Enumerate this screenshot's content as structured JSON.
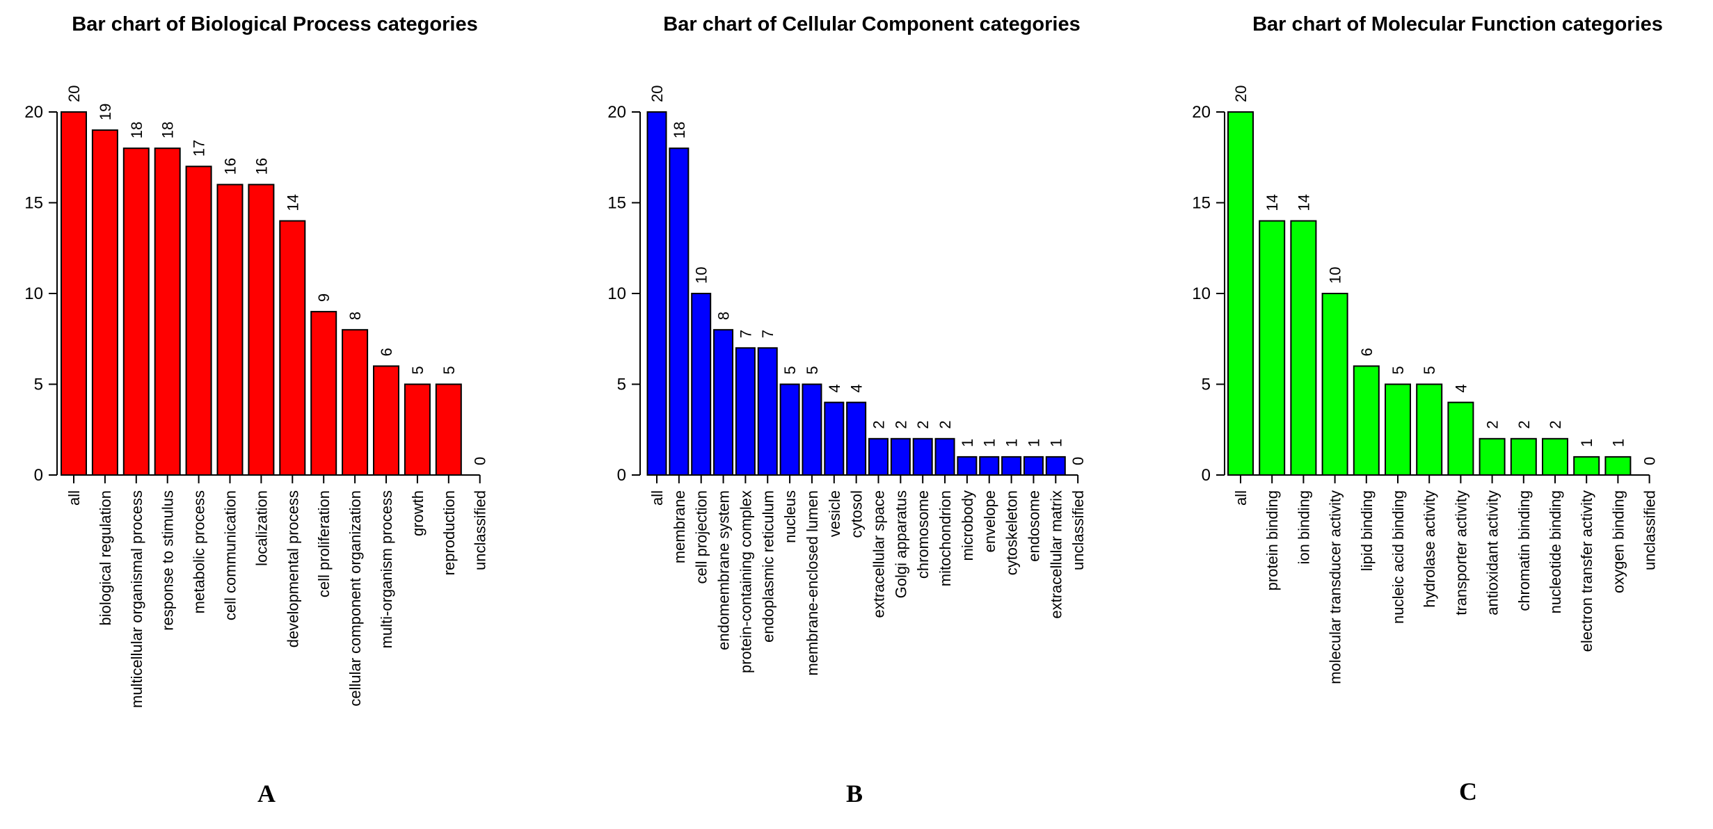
{
  "chart_data": [
    {
      "type": "bar",
      "title": "Bar chart of Biological Process categories",
      "panel": "A",
      "color": "#ff0000",
      "categories": [
        "all",
        "biological regulation",
        "multicellular organismal process",
        "response to stimulus",
        "metabolic process",
        "cell communication",
        "localization",
        "developmental process",
        "cell proliferation",
        "cellular component organization",
        "multi-organism process",
        "growth",
        "reproduction",
        "unclassified"
      ],
      "values": [
        20,
        19,
        18,
        18,
        17,
        16,
        16,
        14,
        9,
        8,
        6,
        5,
        5,
        0
      ],
      "yticks": [
        0,
        5,
        10,
        15,
        20
      ],
      "ylim": [
        0,
        20
      ],
      "xlabel": "",
      "ylabel": "",
      "grid": false
    },
    {
      "type": "bar",
      "title": "Bar chart of Cellular Component categories",
      "panel": "B",
      "color": "#0000ff",
      "categories": [
        "all",
        "membrane",
        "cell projection",
        "endomembrane system",
        "protein-containing complex",
        "endoplasmic reticulum",
        "nucleus",
        "membrane-enclosed lumen",
        "vesicle",
        "cytosol",
        "extracellular space",
        "Golgi apparatus",
        "chromosome",
        "mitochondrion",
        "microbody",
        "envelope",
        "cytoskeleton",
        "endosome",
        "extracellular matrix",
        "unclassified"
      ],
      "values": [
        20,
        18,
        10,
        8,
        7,
        7,
        5,
        5,
        4,
        4,
        2,
        2,
        2,
        2,
        1,
        1,
        1,
        1,
        1,
        0
      ],
      "yticks": [
        0,
        5,
        10,
        15,
        20
      ],
      "ylim": [
        0,
        20
      ],
      "xlabel": "",
      "ylabel": "",
      "grid": false
    },
    {
      "type": "bar",
      "title": "Bar chart of Molecular Function categories",
      "panel": "C",
      "color": "#00ff00",
      "categories": [
        "all",
        "protein binding",
        "ion binding",
        "molecular transducer activity",
        "lipid binding",
        "nucleic acid binding",
        "hydrolase activity",
        "transporter activity",
        "antioxidant activity",
        "chromatin binding",
        "nucleotide binding",
        "electron transfer activity",
        "oxygen binding",
        "unclassified"
      ],
      "values": [
        20,
        14,
        14,
        10,
        6,
        5,
        5,
        4,
        2,
        2,
        2,
        1,
        1,
        0
      ],
      "yticks": [
        0,
        5,
        10,
        15,
        20
      ],
      "ylim": [
        0,
        20
      ],
      "xlabel": "",
      "ylabel": "",
      "grid": false
    }
  ]
}
